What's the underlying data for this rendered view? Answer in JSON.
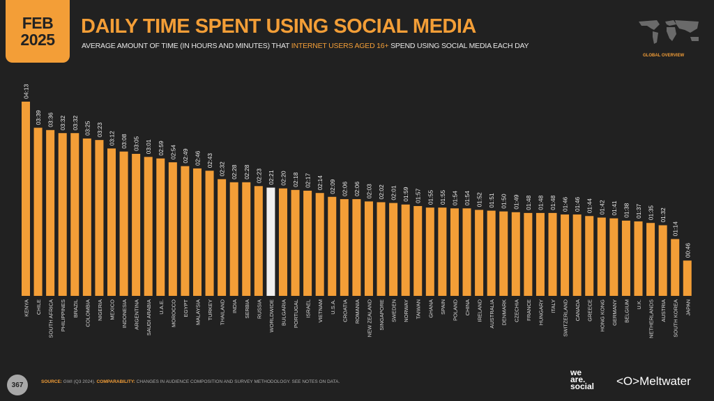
{
  "header": {
    "month": "FEB",
    "year": "2025",
    "title": "DAILY TIME SPENT USING SOCIAL MEDIA",
    "subtitle_pre": "AVERAGE AMOUNT OF TIME (IN HOURS AND MINUTES) THAT ",
    "subtitle_highlight": "INTERNET USERS AGED 16+",
    "subtitle_post": " SPEND USING SOCIAL MEDIA EACH DAY",
    "section_label": "GLOBAL OVERVIEW",
    "map_icon": "world-map-icon"
  },
  "footer": {
    "page_number": "367",
    "source_label": "SOURCE:",
    "source_text": " GWI (Q3 2024). ",
    "comparability_label": "COMPARABILITY:",
    "comparability_text": " CHANGES IN AUDIENCE COMPOSITION AND SURVEY METHODOLOGY. SEE NOTES ON DATA.",
    "logo_we_are_social": [
      "we",
      "are.",
      "social"
    ],
    "logo_meltwater": "Meltwater"
  },
  "colors": {
    "background": "#212121",
    "bar": "#F39E37",
    "highlight_bar": "#F0F0F0",
    "accent": "#F39E37"
  },
  "chart_data": {
    "type": "bar",
    "title": "DAILY TIME SPENT USING SOCIAL MEDIA",
    "value_format": "hh:mm",
    "highlight": "WORLDWIDE",
    "grid": false,
    "categories": [
      "KENYA",
      "CHILE",
      "SOUTH AFRICA",
      "PHILIPPINES",
      "BRAZIL",
      "COLOMBIA",
      "NIGERIA",
      "MEXICO",
      "INDONESIA",
      "ARGENTINA",
      "SAUDI ARABIA",
      "U.A.E.",
      "MOROCCO",
      "EGYPT",
      "MALAYSIA",
      "TURKEY",
      "THAILAND",
      "INDIA",
      "SERBIA",
      "RUSSIA",
      "WORLDWIDE",
      "BULGARIA",
      "PORTUGAL",
      "ISRAEL",
      "VIETNAM",
      "U.S.A.",
      "CROATIA",
      "ROMANIA",
      "NEW ZEALAND",
      "SINGAPORE",
      "SWEDEN",
      "NORWAY",
      "TAIWAN",
      "GHANA",
      "SPAIN",
      "POLAND",
      "CHINA",
      "IRELAND",
      "AUSTRALIA",
      "DENMARK",
      "CZECHIA",
      "FRANCE",
      "HUNGARY",
      "ITALY",
      "SWITZERLAND",
      "CANADA",
      "GREECE",
      "HONG KONG",
      "GERMANY",
      "BELGIUM",
      "U.K.",
      "NETHERLANDS",
      "AUSTRIA",
      "SOUTH KOREA",
      "JAPAN"
    ],
    "values": [
      "04:13",
      "03:39",
      "03:36",
      "03:32",
      "03:32",
      "03:25",
      "03:23",
      "03:12",
      "03:08",
      "03:05",
      "03:01",
      "02:59",
      "02:54",
      "02:49",
      "02:46",
      "02:43",
      "02:32",
      "02:28",
      "02:28",
      "02:23",
      "02:21",
      "02:20",
      "02:18",
      "02:17",
      "02:14",
      "02:09",
      "02:06",
      "02:06",
      "02:03",
      "02:02",
      "02:01",
      "01:59",
      "01:57",
      "01:55",
      "01:55",
      "01:54",
      "01:54",
      "01:52",
      "01:51",
      "01:50",
      "01:49",
      "01:48",
      "01:48",
      "01:48",
      "01:46",
      "01:46",
      "01:44",
      "01:42",
      "01:41",
      "01:38",
      "01:37",
      "01:35",
      "01:32",
      "01:14",
      "00:46"
    ]
  }
}
